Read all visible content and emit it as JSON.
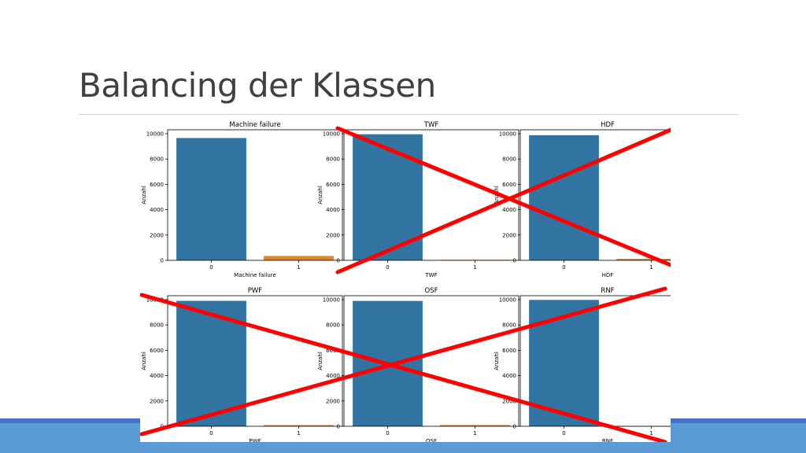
{
  "slide": {
    "title": "Balancing der Klassen",
    "colors": {
      "title_text": "#404040",
      "rule": "#cfcfcf",
      "footer_band": "#5b9bd5",
      "footer_band_edge": "#4472c4",
      "class_0_bar": "#3274a1",
      "class_1_bar": "#e1812c",
      "strike_mark": "#ff0000"
    }
  },
  "chart_data": [
    {
      "type": "bar",
      "title": "Machine failure",
      "xlabel": "Machine failure",
      "ylabel": "Anzahl",
      "categories": [
        "0",
        "1"
      ],
      "values": [
        9661,
        339
      ],
      "ylim": [
        0,
        10000
      ],
      "yticks": [
        0,
        2000,
        4000,
        6000,
        8000,
        10000
      ],
      "grid": false,
      "crossed_out": false
    },
    {
      "type": "bar",
      "title": "TWF",
      "xlabel": "TWF",
      "ylabel": "Anzahl",
      "categories": [
        "0",
        "1"
      ],
      "values": [
        9954,
        46
      ],
      "ylim": [
        0,
        10000
      ],
      "yticks": [
        0,
        2000,
        4000,
        6000,
        8000,
        10000
      ],
      "grid": false,
      "crossed_out": true
    },
    {
      "type": "bar",
      "title": "HDF",
      "xlabel": "HDF",
      "ylabel": "Anzahl",
      "categories": [
        "0",
        "1"
      ],
      "values": [
        9885,
        115
      ],
      "ylim": [
        0,
        10000
      ],
      "yticks": [
        0,
        2000,
        4000,
        6000,
        8000,
        10000
      ],
      "grid": false,
      "crossed_out": true
    },
    {
      "type": "bar",
      "title": "PWF",
      "xlabel": "PWF",
      "ylabel": "Anzahl",
      "categories": [
        "0",
        "1"
      ],
      "values": [
        9905,
        95
      ],
      "ylim": [
        0,
        10000
      ],
      "yticks": [
        0,
        2000,
        4000,
        6000,
        8000,
        10000
      ],
      "grid": false,
      "crossed_out": true
    },
    {
      "type": "bar",
      "title": "OSF",
      "xlabel": "OSF",
      "ylabel": "Anzahl",
      "categories": [
        "0",
        "1"
      ],
      "values": [
        9902,
        98
      ],
      "ylim": [
        0,
        10000
      ],
      "yticks": [
        0,
        2000,
        4000,
        6000,
        8000,
        10000
      ],
      "grid": false,
      "crossed_out": true
    },
    {
      "type": "bar",
      "title": "RNF",
      "xlabel": "RNF",
      "ylabel": "Anzahl",
      "categories": [
        "0",
        "1"
      ],
      "values": [
        9981,
        19
      ],
      "ylim": [
        0,
        10000
      ],
      "yticks": [
        0,
        2000,
        4000,
        6000,
        8000,
        10000
      ],
      "grid": false,
      "crossed_out": true
    }
  ]
}
